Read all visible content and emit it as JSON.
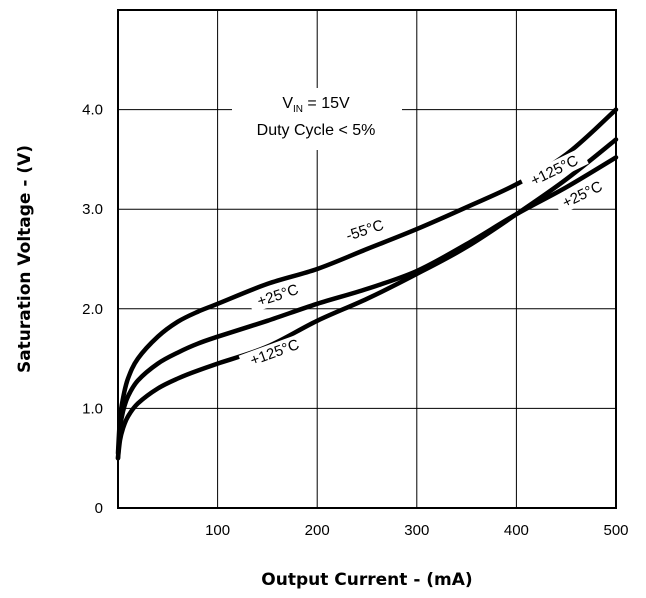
{
  "chart_data": {
    "type": "line",
    "xlabel": "Output Current - (mA)",
    "ylabel": "Saturation Voltage - (V)",
    "xlim": [
      0,
      500
    ],
    "ylim": [
      0,
      5
    ],
    "x_ticks": [
      "100",
      "200",
      "300",
      "400",
      "500"
    ],
    "y_ticks": [
      "0",
      "1.0",
      "2.0",
      "3.0",
      "4.0"
    ],
    "grid": true,
    "annotations": {
      "vin_main": "V",
      "vin_sub": "IN",
      "vin_rest": " = 15V",
      "duty": "Duty Cycle < 5%"
    },
    "series": [
      {
        "name": "-55°C",
        "x": [
          0,
          2,
          5,
          10,
          20,
          40,
          60,
          80,
          100,
          150,
          200,
          250,
          300,
          350,
          400,
          450,
          500
        ],
        "values": [
          0.55,
          0.9,
          1.1,
          1.3,
          1.5,
          1.72,
          1.87,
          1.97,
          2.05,
          2.25,
          2.4,
          2.6,
          2.8,
          3.02,
          3.25,
          3.55,
          4.0
        ]
      },
      {
        "name": "+25°C",
        "x": [
          0,
          2,
          5,
          10,
          20,
          40,
          60,
          80,
          100,
          150,
          200,
          250,
          300,
          350,
          400,
          450,
          500
        ],
        "values": [
          0.5,
          0.8,
          0.97,
          1.12,
          1.28,
          1.45,
          1.56,
          1.65,
          1.72,
          1.88,
          2.05,
          2.2,
          2.38,
          2.65,
          2.95,
          3.22,
          3.52
        ]
      },
      {
        "name": "+125°C",
        "x": [
          0,
          2,
          5,
          10,
          20,
          40,
          60,
          80,
          100,
          150,
          200,
          250,
          300,
          350,
          400,
          450,
          500
        ],
        "values": [
          0.5,
          0.68,
          0.8,
          0.92,
          1.05,
          1.2,
          1.3,
          1.38,
          1.45,
          1.62,
          1.88,
          2.1,
          2.35,
          2.62,
          2.95,
          3.3,
          3.7
        ]
      }
    ],
    "curve_labels": [
      {
        "text": "-55°C"
      },
      {
        "text": "+25°C"
      },
      {
        "text": "+125°C"
      },
      {
        "text": "+125°C"
      },
      {
        "text": "+25°C"
      }
    ]
  }
}
